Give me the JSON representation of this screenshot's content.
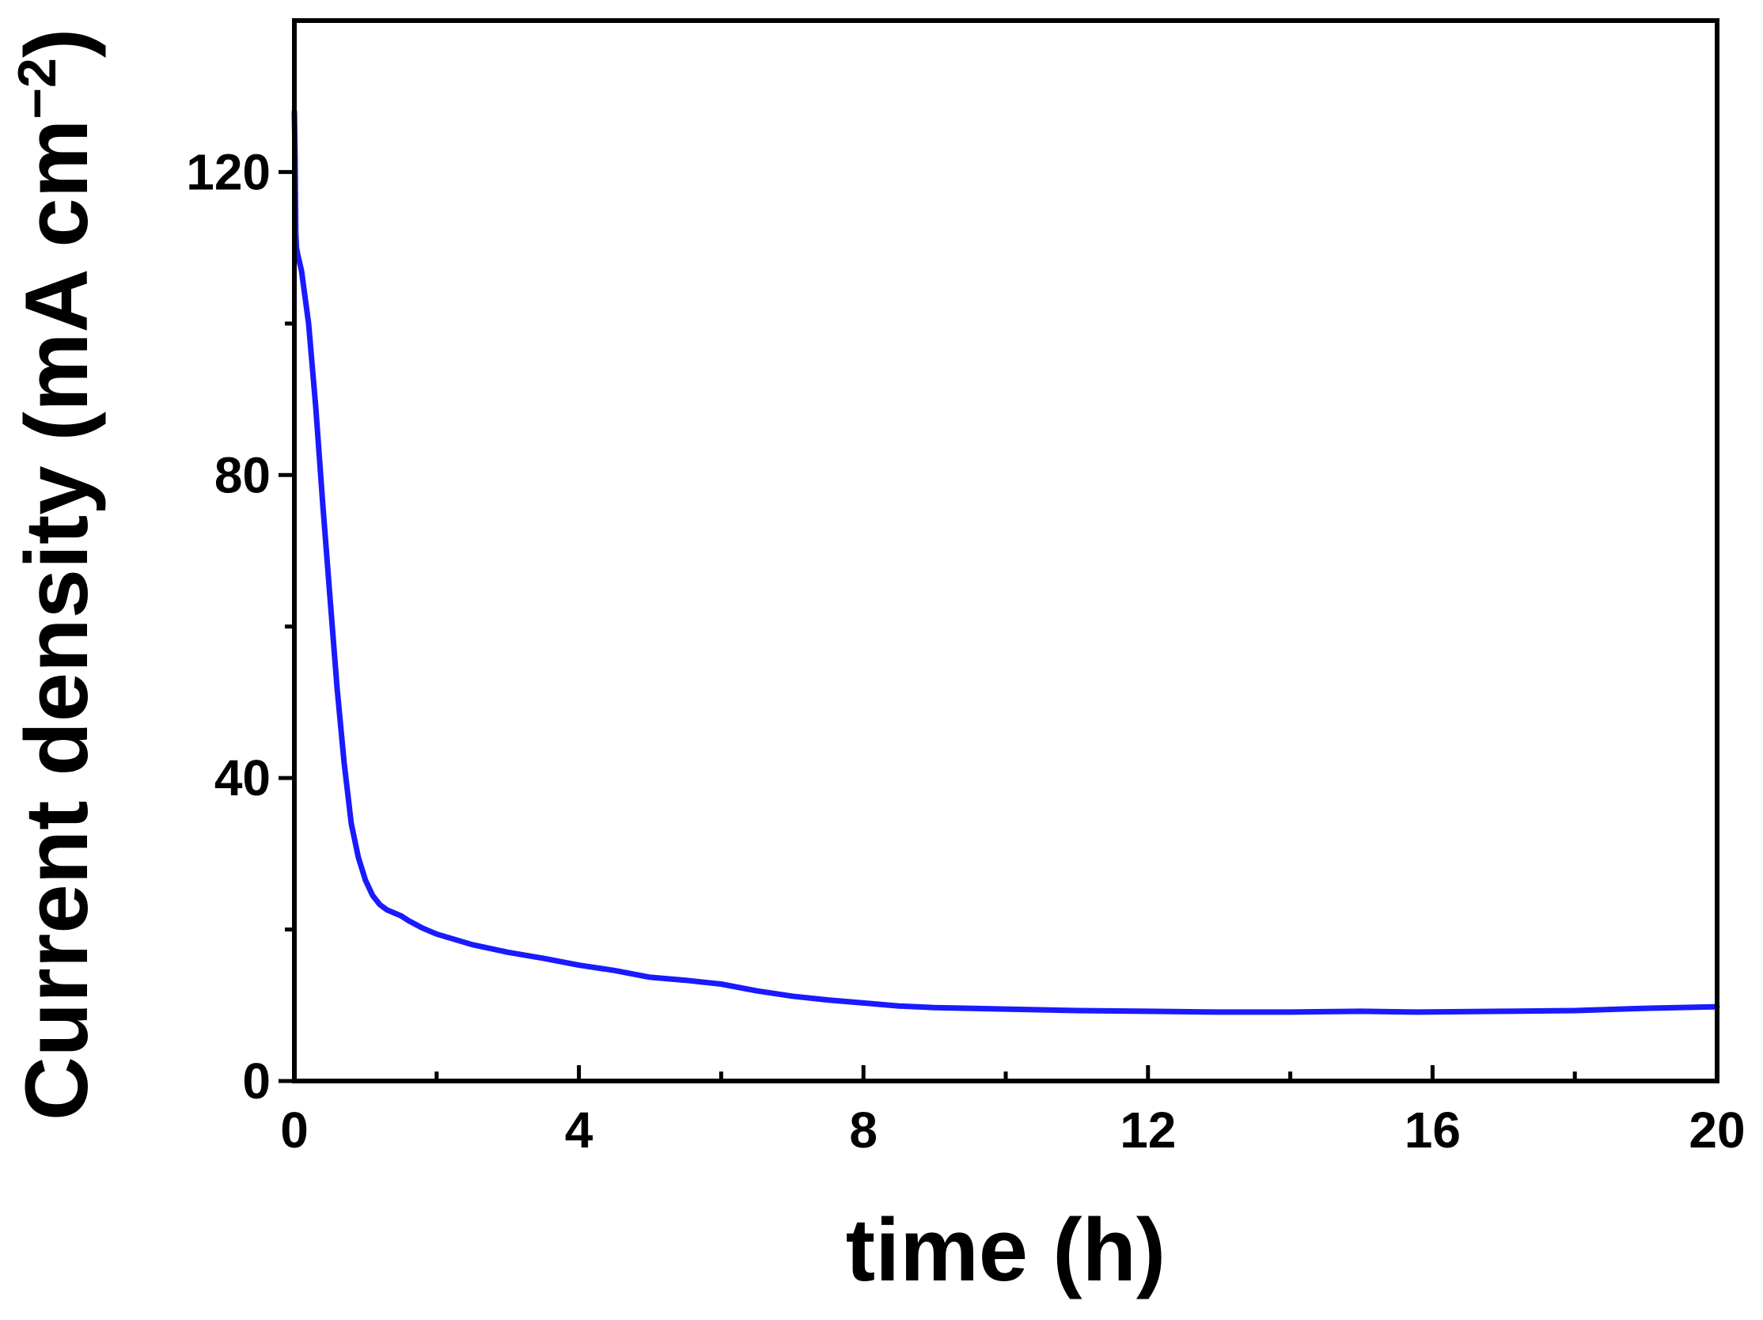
{
  "chart_data": {
    "type": "line",
    "title": "",
    "xlabel": "time (h)",
    "ylabel_main": "Current density (mA cm",
    "ylabel_sup": "−2",
    "ylabel_close": ")",
    "xlim": [
      0,
      20
    ],
    "ylim": [
      0,
      140
    ],
    "xticks": [
      0,
      4,
      8,
      12,
      16,
      20
    ],
    "xticks_minor": [
      2,
      6,
      10,
      14,
      18
    ],
    "yticks": [
      0,
      40,
      80,
      120
    ],
    "yticks_minor": [
      20,
      60,
      100
    ],
    "grid": false,
    "legend": "none",
    "line_color": "#1a1aff",
    "axis_color": "#000000",
    "series": [
      {
        "x": [
          0,
          0.01,
          0.02,
          0.03,
          0.05,
          0.1,
          0.2,
          0.3,
          0.4,
          0.5,
          0.6,
          0.7,
          0.8,
          0.9,
          1.0,
          1.1,
          1.2,
          1.3,
          1.4,
          1.5,
          1.6,
          1.8,
          2.0,
          2.5,
          3.0,
          3.5,
          4.0,
          4.5,
          5.0,
          5.5,
          6.0,
          6.5,
          7.0,
          7.5,
          8.0,
          8.5,
          9.0,
          10.0,
          11.0,
          12.0,
          13.0,
          14.0,
          15.0,
          15.8,
          17.0,
          18.0,
          19.0,
          20.0
        ],
        "y": [
          128,
          122,
          112,
          110,
          109,
          107,
          100,
          89,
          76,
          64,
          52,
          42,
          34,
          29.5,
          26.5,
          24.5,
          23.3,
          22.6,
          22.2,
          21.8,
          21.2,
          20.2,
          19.4,
          18.0,
          17.0,
          16.2,
          15.3,
          14.6,
          13.7,
          13.3,
          12.8,
          11.9,
          11.2,
          10.7,
          10.3,
          9.9,
          9.7,
          9.5,
          9.3,
          9.2,
          9.1,
          9.1,
          9.2,
          9.1,
          9.2,
          9.3,
          9.6,
          9.8
        ]
      }
    ]
  }
}
